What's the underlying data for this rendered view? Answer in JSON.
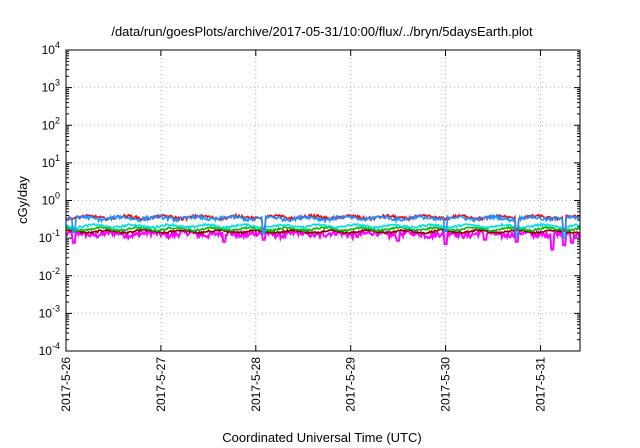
{
  "chart_data": {
    "type": "line",
    "title": "/data/run/goesPlots/archive/2017-05-31/10:00/flux/../bryn/5daysEarth.plot",
    "xlabel": "Coordinated Universal Time (UTC)",
    "ylabel": "cGy/day",
    "yscale": "log",
    "ylim": [
      0.0001,
      10000
    ],
    "xlim": [
      "2017-05-26T00:00",
      "2017-05-31T10:00"
    ],
    "grid": true,
    "x_ticks": [
      "2017-5-26",
      "2017-5-27",
      "2017-5-28",
      "2017-5-29",
      "2017-5-30",
      "2017-5-31"
    ],
    "y_ticks": [
      {
        "value": 0.0001,
        "base": "10",
        "exp": "-4"
      },
      {
        "value": 0.001,
        "base": "10",
        "exp": "-3"
      },
      {
        "value": 0.01,
        "base": "10",
        "exp": "-2"
      },
      {
        "value": 0.1,
        "base": "10",
        "exp": "-1"
      },
      {
        "value": 1,
        "base": "10",
        "exp": "0"
      },
      {
        "value": 10,
        "base": "10",
        "exp": "1"
      },
      {
        "value": 100,
        "base": "10",
        "exp": "2"
      },
      {
        "value": 1000,
        "base": "10",
        "exp": "3"
      },
      {
        "value": 10000,
        "base": "10",
        "exp": "4"
      }
    ],
    "series": [
      {
        "color": "#ff00ff",
        "base": 0.13,
        "noise": 0.35,
        "dips": [
          [
            "2017-05-26T02:00",
            0.075
          ],
          [
            "2017-05-27T16:00",
            0.08
          ],
          [
            "2017-05-28T02:00",
            0.09
          ],
          [
            "2017-05-29T12:00",
            0.085
          ],
          [
            "2017-05-30T00:00",
            0.07
          ],
          [
            "2017-05-30T10:00",
            0.09
          ],
          [
            "2017-05-30T18:00",
            0.08
          ],
          [
            "2017-05-31T03:00",
            0.05
          ],
          [
            "2017-05-31T06:00",
            0.065
          ],
          [
            "2017-05-31T08:00",
            0.075
          ]
        ]
      },
      {
        "color": "#8b0000",
        "base": 0.15,
        "noise": 0.12,
        "dips": []
      },
      {
        "color": "#00c000",
        "base": 0.175,
        "noise": 0.12,
        "dips": []
      },
      {
        "color": "#00e0e0",
        "base": 0.21,
        "noise": 0.13,
        "dips": [
          [
            "2017-05-28T02:00",
            0.14
          ],
          [
            "2017-05-30T18:00",
            0.13
          ],
          [
            "2017-05-31T06:00",
            0.12
          ]
        ]
      },
      {
        "color": "#ff0000",
        "base": 0.36,
        "noise": 0.18,
        "dips": [
          [
            "2017-05-28T02:00",
            0.18
          ],
          [
            "2017-05-30T18:00",
            0.16
          ],
          [
            "2017-05-31T06:00",
            0.15
          ]
        ]
      },
      {
        "color": "#1e90ff",
        "base": 0.34,
        "noise": 0.22,
        "dips": [
          [
            "2017-05-26T02:00",
            0.14
          ],
          [
            "2017-05-28T02:00",
            0.13
          ],
          [
            "2017-05-30T00:00",
            0.15
          ],
          [
            "2017-05-30T18:00",
            0.11
          ],
          [
            "2017-05-31T06:00",
            0.1
          ]
        ]
      }
    ]
  }
}
